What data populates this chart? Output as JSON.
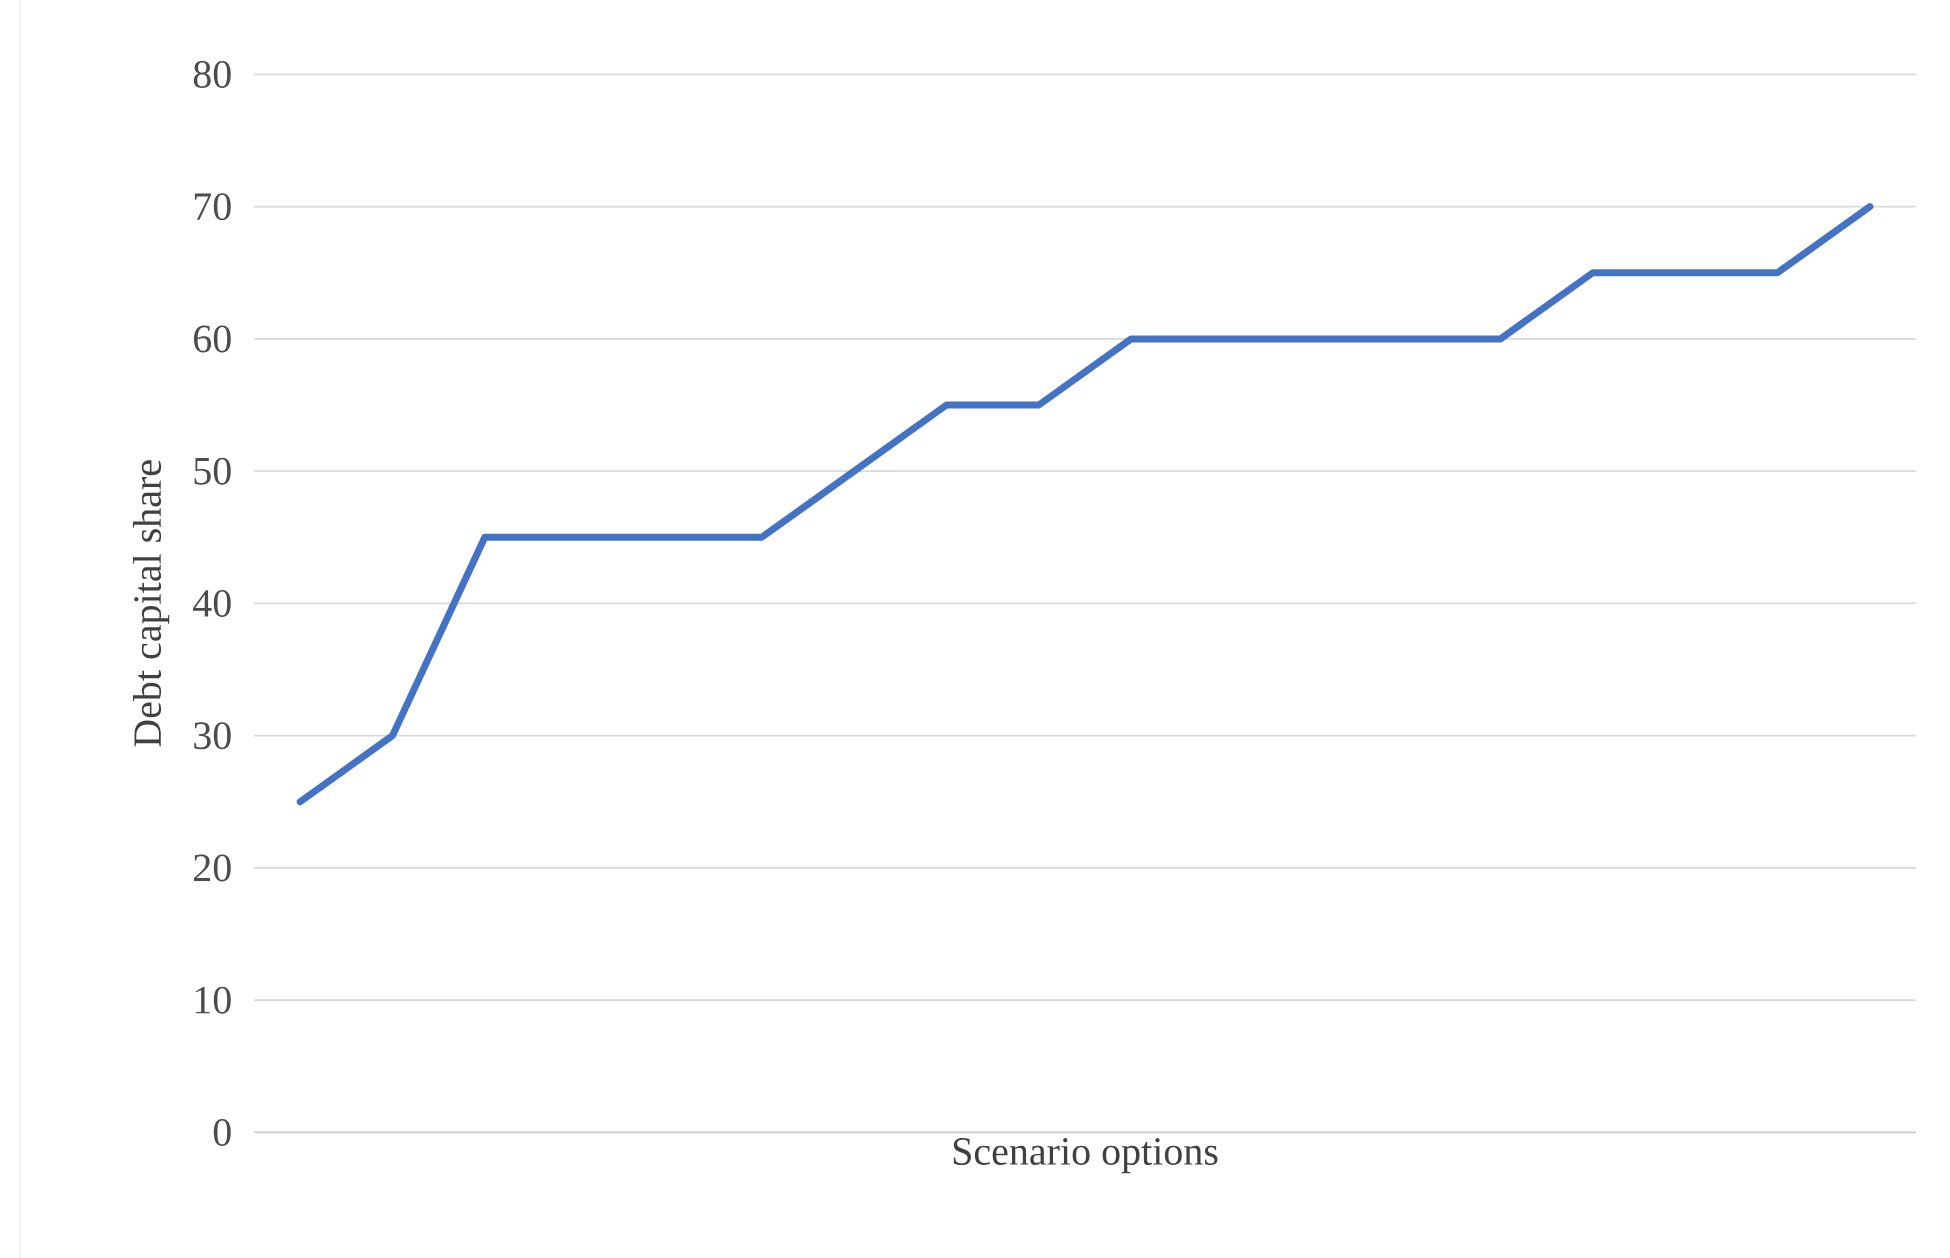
{
  "chart_data": {
    "type": "line",
    "xlabel": "Scenario options",
    "ylabel": "Debt capital share",
    "categories": [
      null,
      null,
      null,
      null,
      null,
      null,
      null,
      null,
      null,
      null,
      null,
      null,
      null,
      null,
      null,
      null,
      null,
      null
    ],
    "values": [
      25,
      30,
      45,
      45,
      45,
      45,
      50,
      55,
      55,
      60,
      60,
      60,
      60,
      60,
      65,
      65,
      65,
      70
    ],
    "color": "#4472c4",
    "ylim": [
      0,
      80
    ],
    "yticks": [
      0,
      10,
      20,
      30,
      40,
      50,
      60,
      70,
      80
    ],
    "grid": "y",
    "tick_labels": "y"
  }
}
